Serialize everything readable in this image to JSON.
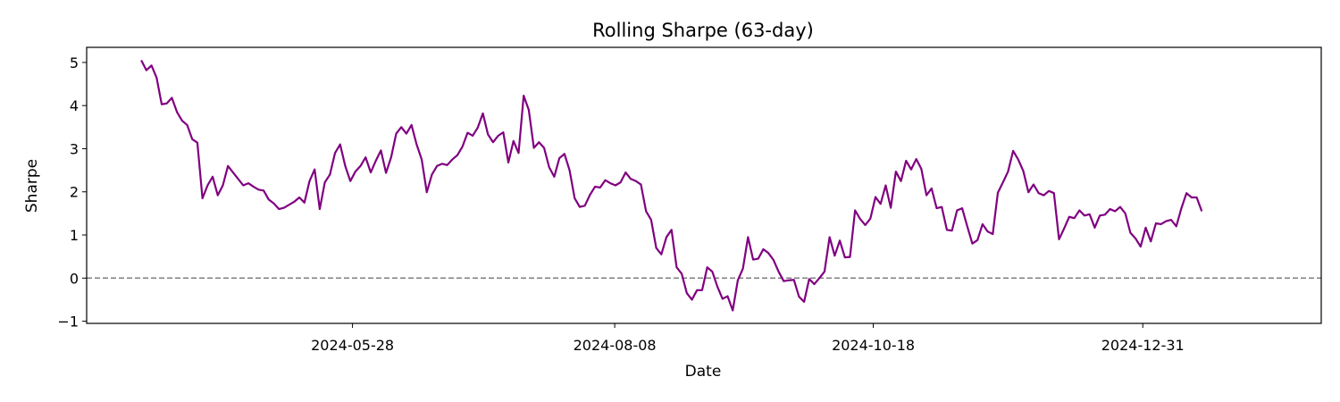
{
  "chart_data": {
    "type": "line",
    "title": "Rolling Sharpe (63-day)",
    "xlabel": "Date",
    "ylabel": "Sharpe",
    "ylim": [
      -1.05,
      5.35
    ],
    "xlim": [
      "2024-03-16",
      "2025-02-18"
    ],
    "x_ticks": [
      "2024-05-28",
      "2024-08-08",
      "2024-10-18",
      "2024-12-31"
    ],
    "y_ticks": [
      -1,
      0,
      1,
      2,
      3,
      4,
      5
    ],
    "grid": false,
    "line_color": "#800080",
    "reference_line": {
      "y": 0,
      "style": "dashed",
      "color": "#808080"
    },
    "series": [
      {
        "start_date": "2024-03-31",
        "step_days": 1.4,
        "values": [
          5.05,
          4.82,
          4.93,
          4.65,
          4.03,
          4.05,
          4.18,
          3.85,
          3.65,
          3.55,
          3.22,
          3.14,
          1.85,
          2.15,
          2.35,
          1.92,
          2.15,
          2.6,
          2.45,
          2.3,
          2.15,
          2.2,
          2.12,
          2.05,
          2.03,
          1.82,
          1.73,
          1.6,
          1.63,
          1.7,
          1.77,
          1.87,
          1.75,
          2.25,
          2.52,
          1.6,
          2.22,
          2.4,
          2.9,
          3.1,
          2.6,
          2.25,
          2.47,
          2.6,
          2.8,
          2.45,
          2.72,
          2.96,
          2.44,
          2.8,
          3.35,
          3.5,
          3.35,
          3.55,
          3.1,
          2.75,
          1.99,
          2.4,
          2.6,
          2.65,
          2.62,
          2.75,
          2.85,
          3.05,
          3.37,
          3.3,
          3.49,
          3.82,
          3.33,
          3.15,
          3.3,
          3.38,
          2.68,
          3.18,
          2.9,
          4.23,
          3.9,
          3.02,
          3.15,
          3.02,
          2.57,
          2.35,
          2.78,
          2.88,
          2.5,
          1.85,
          1.65,
          1.68,
          1.93,
          2.12,
          2.1,
          2.27,
          2.2,
          2.15,
          2.22,
          2.45,
          2.3,
          2.25,
          2.17,
          1.55,
          1.35,
          0.7,
          0.55,
          0.95,
          1.12,
          0.25,
          0.1,
          -0.35,
          -0.5,
          -0.28,
          -0.28,
          0.25,
          0.15,
          -0.2,
          -0.48,
          -0.42,
          -0.75,
          -0.05,
          0.22,
          0.95,
          0.43,
          0.45,
          0.67,
          0.58,
          0.42,
          0.15,
          -0.07,
          -0.05,
          -0.04,
          -0.43,
          -0.55,
          -0.02,
          -0.14,
          0.0,
          0.15,
          0.95,
          0.52,
          0.87,
          0.48,
          0.49,
          1.57,
          1.37,
          1.23,
          1.38,
          1.88,
          1.72,
          2.15,
          1.63,
          2.47,
          2.25,
          2.72,
          2.52,
          2.76,
          2.53,
          1.92,
          2.08,
          1.62,
          1.65,
          1.12,
          1.1,
          1.57,
          1.62,
          1.2,
          0.8,
          0.88,
          1.25,
          1.08,
          1.02,
          1.98,
          2.22,
          2.47,
          2.95,
          2.75,
          2.48,
          1.99,
          2.17,
          1.97,
          1.92,
          2.02,
          1.97,
          0.9,
          1.15,
          1.42,
          1.39,
          1.57,
          1.45,
          1.48,
          1.17,
          1.45,
          1.47,
          1.6,
          1.55,
          1.65,
          1.5,
          1.05,
          0.92,
          0.73,
          1.17,
          0.85,
          1.27,
          1.25,
          1.32,
          1.35,
          1.2,
          1.62,
          1.97,
          1.87,
          1.87,
          1.55
        ]
      }
    ]
  }
}
